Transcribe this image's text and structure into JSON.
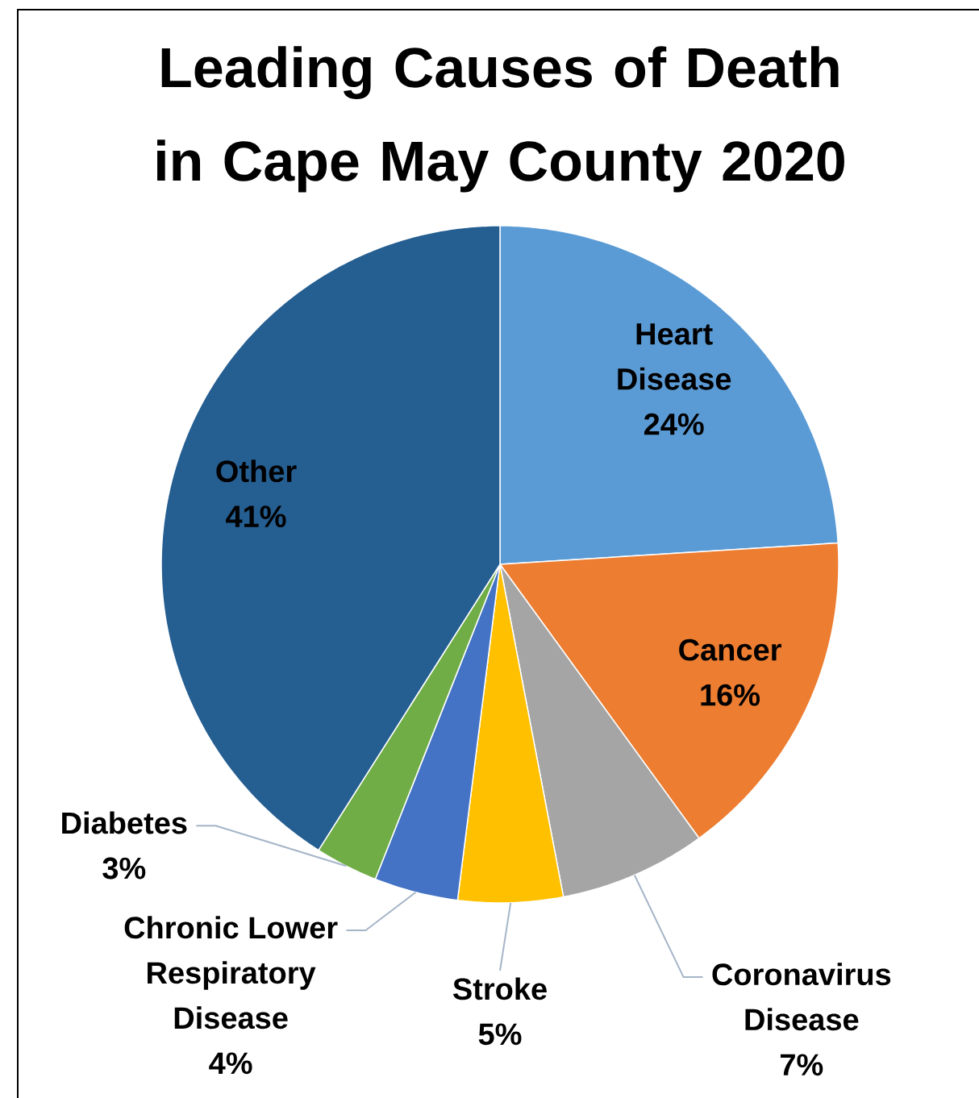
{
  "chart_data": {
    "type": "pie",
    "title": "Leading Causes of Death in Cape May County 2020",
    "categories": [
      "Heart Disease",
      "Cancer",
      "Coronavirus Disease",
      "Stroke",
      "Chronic Lower Respiratory Disease",
      "Diabetes",
      "Other"
    ],
    "values": [
      24,
      16,
      7,
      5,
      4,
      3,
      41
    ],
    "colors": [
      "#5b9bd5",
      "#ed7d31",
      "#a5a5a5",
      "#ffc000",
      "#4472c4",
      "#70ad47",
      "#255e91"
    ],
    "value_labels": [
      "24%",
      "16%",
      "7%",
      "5%",
      "4%",
      "3%",
      "41%"
    ]
  }
}
